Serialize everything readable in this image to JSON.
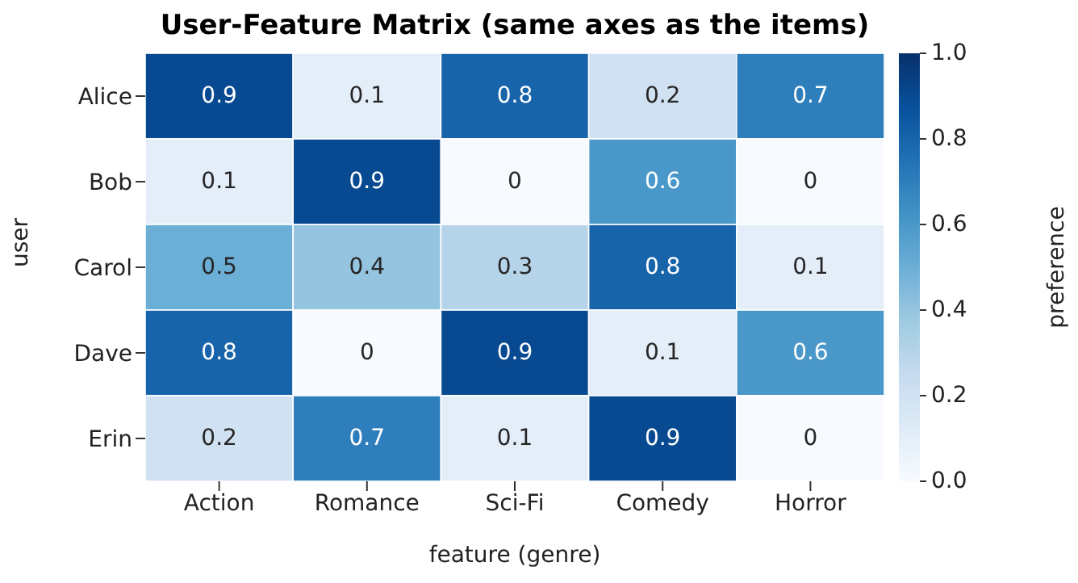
{
  "chart_data": {
    "type": "heatmap",
    "title": "User-Feature Matrix (same axes as the items)",
    "xlabel": "feature (genre)",
    "ylabel": "user",
    "clabel": "preference",
    "categories": [
      "Action",
      "Romance",
      "Sci-Fi",
      "Comedy",
      "Horror"
    ],
    "y_categories": [
      "Alice",
      "Bob",
      "Carol",
      "Dave",
      "Erin"
    ],
    "cells": [
      [
        0.9,
        0.1,
        0.8,
        0.2,
        0.7
      ],
      [
        0.1,
        0.9,
        0,
        0.6,
        0
      ],
      [
        0.5,
        0.4,
        0.3,
        0.8,
        0.1
      ],
      [
        0.8,
        0,
        0.9,
        0.1,
        0.6
      ],
      [
        0.2,
        0.7,
        0.1,
        0.9,
        0
      ]
    ],
    "data_labels": true,
    "clim": [
      0,
      1
    ],
    "cticks": [
      {
        "value": 0,
        "label": "0.0"
      },
      {
        "value": 0.2,
        "label": "0.2"
      },
      {
        "value": 0.4,
        "label": "0.4"
      },
      {
        "value": 0.6,
        "label": "0.6"
      },
      {
        "value": 0.8,
        "label": "0.8"
      },
      {
        "value": 1,
        "label": "1.0"
      }
    ]
  }
}
